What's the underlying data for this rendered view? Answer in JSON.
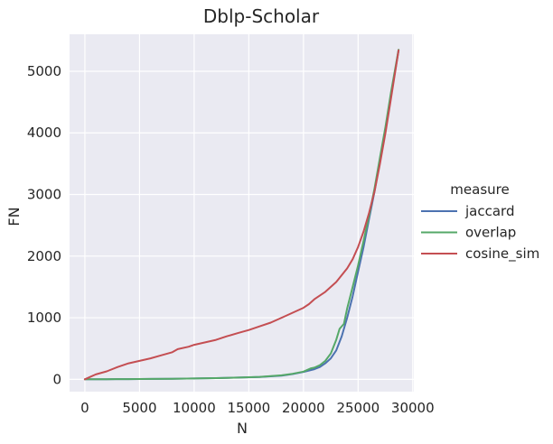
{
  "chart_data": {
    "type": "line",
    "title": "Dblp-Scholar",
    "xlabel": "N",
    "ylabel": "FN",
    "xlim": [
      -1400,
      30100
    ],
    "ylim": [
      -200,
      5600
    ],
    "xticks": [
      0,
      5000,
      10000,
      15000,
      20000,
      25000,
      30000
    ],
    "yticks": [
      0,
      1000,
      2000,
      3000,
      4000,
      5000
    ],
    "grid": true,
    "background": "#eaeaf2",
    "legend": {
      "title": "measure",
      "position": "right"
    },
    "series": [
      {
        "name": "jaccard",
        "color": "#4c72b0",
        "points": [
          [
            0,
            0
          ],
          [
            2000,
            2
          ],
          [
            4000,
            4
          ],
          [
            6000,
            6
          ],
          [
            8000,
            10
          ],
          [
            10000,
            14
          ],
          [
            12000,
            20
          ],
          [
            14000,
            28
          ],
          [
            16000,
            38
          ],
          [
            18000,
            60
          ],
          [
            19000,
            85
          ],
          [
            20000,
            120
          ],
          [
            21000,
            165
          ],
          [
            21500,
            200
          ],
          [
            22000,
            260
          ],
          [
            22500,
            340
          ],
          [
            23000,
            470
          ],
          [
            23500,
            700
          ],
          [
            24000,
            1000
          ],
          [
            24500,
            1350
          ],
          [
            25000,
            1750
          ],
          [
            25500,
            2150
          ],
          [
            26000,
            2600
          ],
          [
            26500,
            3050
          ],
          [
            27000,
            3550
          ],
          [
            27500,
            4050
          ],
          [
            28000,
            4600
          ],
          [
            28700,
            5340
          ]
        ]
      },
      {
        "name": "overlap",
        "color": "#55a868",
        "points": [
          [
            0,
            0
          ],
          [
            2000,
            2
          ],
          [
            4000,
            4
          ],
          [
            6000,
            6
          ],
          [
            8000,
            10
          ],
          [
            10000,
            14
          ],
          [
            12000,
            20
          ],
          [
            14000,
            28
          ],
          [
            16000,
            40
          ],
          [
            18000,
            65
          ],
          [
            19000,
            90
          ],
          [
            20000,
            125
          ],
          [
            20700,
            180
          ],
          [
            21000,
            190
          ],
          [
            21500,
            230
          ],
          [
            22000,
            300
          ],
          [
            22500,
            420
          ],
          [
            23000,
            640
          ],
          [
            23300,
            820
          ],
          [
            23700,
            900
          ],
          [
            24000,
            1150
          ],
          [
            24500,
            1500
          ],
          [
            25000,
            1850
          ],
          [
            25500,
            2250
          ],
          [
            26000,
            2650
          ],
          [
            26500,
            3100
          ],
          [
            27000,
            3600
          ],
          [
            27500,
            4100
          ],
          [
            28000,
            4650
          ],
          [
            28700,
            5350
          ]
        ]
      },
      {
        "name": "cosine_sim",
        "color": "#c44e52",
        "points": [
          [
            0,
            0
          ],
          [
            500,
            40
          ],
          [
            1000,
            80
          ],
          [
            2000,
            130
          ],
          [
            3000,
            200
          ],
          [
            4000,
            260
          ],
          [
            5000,
            300
          ],
          [
            6000,
            340
          ],
          [
            7000,
            390
          ],
          [
            8000,
            440
          ],
          [
            8500,
            490
          ],
          [
            9500,
            530
          ],
          [
            10000,
            560
          ],
          [
            11000,
            600
          ],
          [
            12000,
            640
          ],
          [
            13000,
            700
          ],
          [
            14000,
            750
          ],
          [
            15000,
            800
          ],
          [
            16000,
            860
          ],
          [
            17000,
            920
          ],
          [
            18000,
            1000
          ],
          [
            19000,
            1080
          ],
          [
            20000,
            1160
          ],
          [
            20500,
            1220
          ],
          [
            21000,
            1300
          ],
          [
            22000,
            1420
          ],
          [
            23000,
            1580
          ],
          [
            24000,
            1800
          ],
          [
            24500,
            1950
          ],
          [
            25000,
            2150
          ],
          [
            25500,
            2400
          ],
          [
            26000,
            2700
          ],
          [
            26500,
            3050
          ],
          [
            27000,
            3500
          ],
          [
            27500,
            4000
          ],
          [
            28000,
            4550
          ],
          [
            28700,
            5340
          ]
        ]
      }
    ]
  }
}
